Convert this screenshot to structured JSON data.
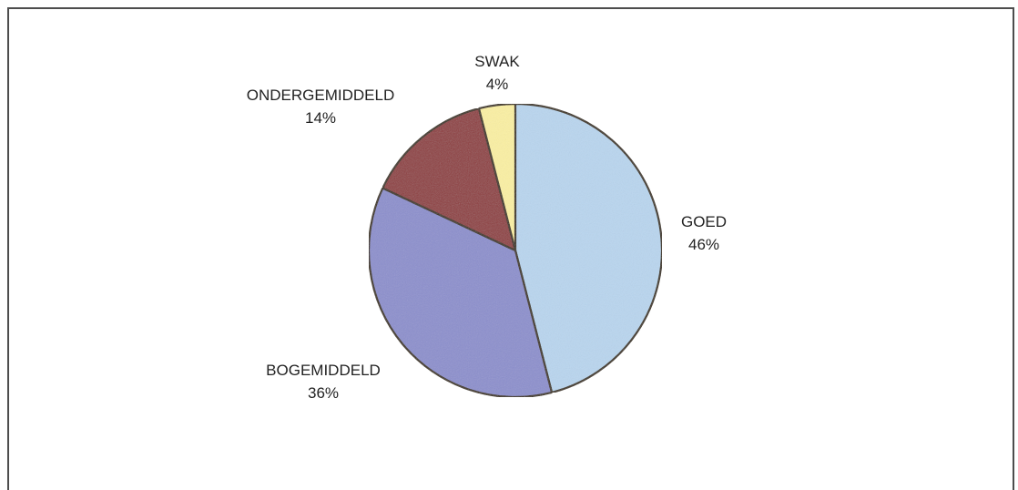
{
  "chart_data": {
    "type": "pie",
    "slices": [
      {
        "label": "GOED",
        "value": 46,
        "percent_label": "46%",
        "color": "#b9d6ef"
      },
      {
        "label": "BOGEMIDDELD",
        "value": 36,
        "percent_label": "36%",
        "color": "#8c8fcd"
      },
      {
        "label": "ONDERGEMIDDELD",
        "value": 14,
        "percent_label": "14%",
        "color": "#8f3c3f"
      },
      {
        "label": "SWAK",
        "value": 4,
        "percent_label": "4%",
        "color": "#fbf0a3"
      }
    ],
    "start_angle_deg": 0,
    "direction": "clockwise",
    "outline_color": "#3a2e1e"
  }
}
